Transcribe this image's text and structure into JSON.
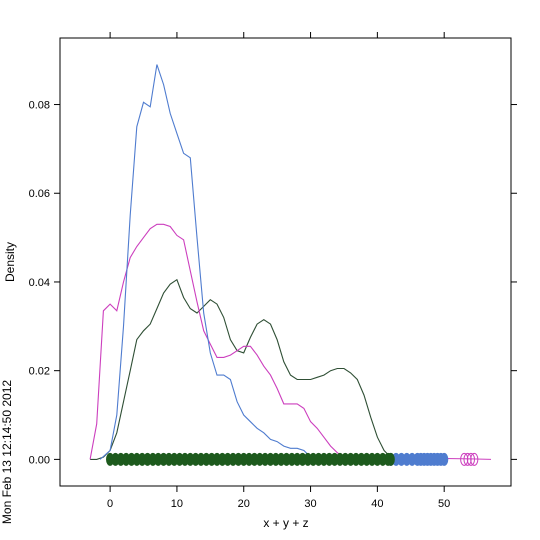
{
  "timestamp": "Mon Feb 13 12:14:50 2012",
  "chart_data": {
    "type": "line",
    "xlabel": "x + y + z",
    "ylabel": "Density",
    "xlim": [
      -7.5,
      60
    ],
    "ylim": [
      -0.006,
      0.095
    ],
    "x_ticks": [
      0,
      10,
      20,
      30,
      40,
      50
    ],
    "y_ticks": [
      0.0,
      0.02,
      0.04,
      0.06,
      0.08
    ],
    "y_tick_labels": [
      "0.00",
      "0.02",
      "0.04",
      "0.06",
      "0.08"
    ],
    "series": [
      {
        "color": "#4f7ccf",
        "density": [
          [
            -1.5,
            0.0
          ],
          [
            0,
            0.002
          ],
          [
            1,
            0.01
          ],
          [
            2,
            0.03
          ],
          [
            3,
            0.055
          ],
          [
            4,
            0.075
          ],
          [
            5,
            0.0805
          ],
          [
            6,
            0.0795
          ],
          [
            7,
            0.089
          ],
          [
            8,
            0.0845
          ],
          [
            9,
            0.078
          ],
          [
            10,
            0.0735
          ],
          [
            11,
            0.069
          ],
          [
            12,
            0.068
          ],
          [
            13,
            0.05
          ],
          [
            14,
            0.033
          ],
          [
            15,
            0.024
          ],
          [
            16,
            0.019
          ],
          [
            17,
            0.019
          ],
          [
            18,
            0.018
          ],
          [
            19,
            0.013
          ],
          [
            20,
            0.01
          ],
          [
            21,
            0.0085
          ],
          [
            22,
            0.007
          ],
          [
            23,
            0.006
          ],
          [
            24,
            0.0045
          ],
          [
            25,
            0.004
          ],
          [
            26,
            0.003
          ],
          [
            27,
            0.0025
          ],
          [
            28,
            0.0025
          ],
          [
            29,
            0.002
          ],
          [
            30,
            0.0005
          ]
        ],
        "rug": [
          0,
          1,
          2,
          3,
          4,
          5,
          6,
          7,
          8,
          9,
          10,
          11,
          12,
          13,
          14,
          15,
          16,
          17,
          18,
          19,
          20,
          21,
          22,
          23,
          24,
          25,
          26,
          27,
          28,
          29,
          30,
          31,
          32,
          33,
          34,
          35,
          36,
          37,
          38,
          39,
          40,
          41,
          42,
          43,
          44,
          45,
          46,
          47,
          48,
          49
        ]
      },
      {
        "color": "#cc3fbe",
        "density": [
          [
            -3,
            0.0
          ],
          [
            -2,
            0.008
          ],
          [
            -1,
            0.0335
          ],
          [
            0,
            0.035
          ],
          [
            1,
            0.0335
          ],
          [
            2,
            0.04
          ],
          [
            3,
            0.0455
          ],
          [
            4,
            0.048
          ],
          [
            5,
            0.05
          ],
          [
            6,
            0.052
          ],
          [
            7,
            0.053
          ],
          [
            8,
            0.053
          ],
          [
            9,
            0.0525
          ],
          [
            10,
            0.0505
          ],
          [
            11,
            0.0495
          ],
          [
            12,
            0.0425
          ],
          [
            13,
            0.0355
          ],
          [
            14,
            0.029
          ],
          [
            15,
            0.026
          ],
          [
            16,
            0.023
          ],
          [
            17,
            0.023
          ],
          [
            18,
            0.0235
          ],
          [
            19,
            0.0245
          ],
          [
            20,
            0.0255
          ],
          [
            21,
            0.0255
          ],
          [
            22,
            0.0235
          ],
          [
            23,
            0.021
          ],
          [
            24,
            0.019
          ],
          [
            25,
            0.016
          ],
          [
            26,
            0.0125
          ],
          [
            27,
            0.0125
          ],
          [
            28,
            0.0125
          ],
          [
            29,
            0.0115
          ],
          [
            30,
            0.0085
          ],
          [
            31,
            0.007
          ],
          [
            32,
            0.005
          ],
          [
            33,
            0.003
          ],
          [
            34,
            0.0015
          ],
          [
            35,
            0.0005
          ],
          [
            36,
            0.0
          ]
        ],
        "rug": [
          47,
          48.5,
          53,
          53.5,
          54,
          54.5
        ]
      },
      {
        "color": "#2f4f35",
        "density": [
          [
            -3,
            0.0
          ],
          [
            -2,
            0.0
          ],
          [
            -1,
            0.0005
          ],
          [
            0,
            0.002
          ],
          [
            1,
            0.006
          ],
          [
            2,
            0.013
          ],
          [
            3,
            0.02
          ],
          [
            4,
            0.027
          ],
          [
            5,
            0.029
          ],
          [
            6,
            0.0305
          ],
          [
            7,
            0.034
          ],
          [
            8,
            0.0375
          ],
          [
            9,
            0.0395
          ],
          [
            10,
            0.0405
          ],
          [
            11,
            0.0365
          ],
          [
            12,
            0.034
          ],
          [
            13,
            0.033
          ],
          [
            14,
            0.0345
          ],
          [
            15,
            0.036
          ],
          [
            16,
            0.035
          ],
          [
            17,
            0.032
          ],
          [
            18,
            0.027
          ],
          [
            19,
            0.0245
          ],
          [
            20,
            0.024
          ],
          [
            21,
            0.0275
          ],
          [
            22,
            0.0305
          ],
          [
            23,
            0.0315
          ],
          [
            24,
            0.0305
          ],
          [
            25,
            0.027
          ],
          [
            26,
            0.022
          ],
          [
            27,
            0.019
          ],
          [
            28,
            0.018
          ],
          [
            29,
            0.018
          ],
          [
            30,
            0.018
          ],
          [
            31,
            0.0185
          ],
          [
            32,
            0.019
          ],
          [
            33,
            0.02
          ],
          [
            34,
            0.0205
          ],
          [
            35,
            0.0205
          ],
          [
            36,
            0.0195
          ],
          [
            37,
            0.018
          ],
          [
            38,
            0.0145
          ],
          [
            39,
            0.0095
          ],
          [
            40,
            0.005
          ],
          [
            41,
            0.002
          ],
          [
            42,
            0.0005
          ],
          [
            43,
            0.0
          ]
        ],
        "rug": [
          0,
          0.8,
          1.6,
          2.4,
          3.2,
          4,
          4.8,
          5.6,
          6.4,
          7.2,
          8,
          8.8,
          9.6,
          10.4,
          11.2,
          12,
          12.8,
          13.6,
          14.4,
          15.2,
          16,
          16.8,
          17.6,
          18.4,
          19.2,
          20,
          20.8,
          21.6,
          22.4,
          23.2,
          24,
          24.8,
          25.6,
          26.4,
          27.2,
          28,
          28.8,
          29.6,
          30.4,
          31.2,
          32,
          32.8,
          33.6,
          34.4,
          35.2,
          36,
          36.8,
          37.6,
          38.4,
          39.2,
          40,
          40.8,
          41.6,
          42
        ]
      }
    ],
    "rug_extra": [
      {
        "color": "#4f7ccf",
        "x": [
          42,
          42.8,
          43.6,
          44.4,
          45.2,
          46,
          46.5,
          47,
          47.5,
          48,
          48.5,
          49,
          49.5,
          50
        ]
      },
      {
        "color": "#cc3fbe",
        "x": [
          53,
          53.5,
          54,
          54.5
        ]
      }
    ],
    "pink_tail": [
      [
        47,
        0.0003
      ],
      [
        50,
        0.0002
      ],
      [
        54,
        0.0001
      ],
      [
        57,
        0.0
      ]
    ]
  }
}
